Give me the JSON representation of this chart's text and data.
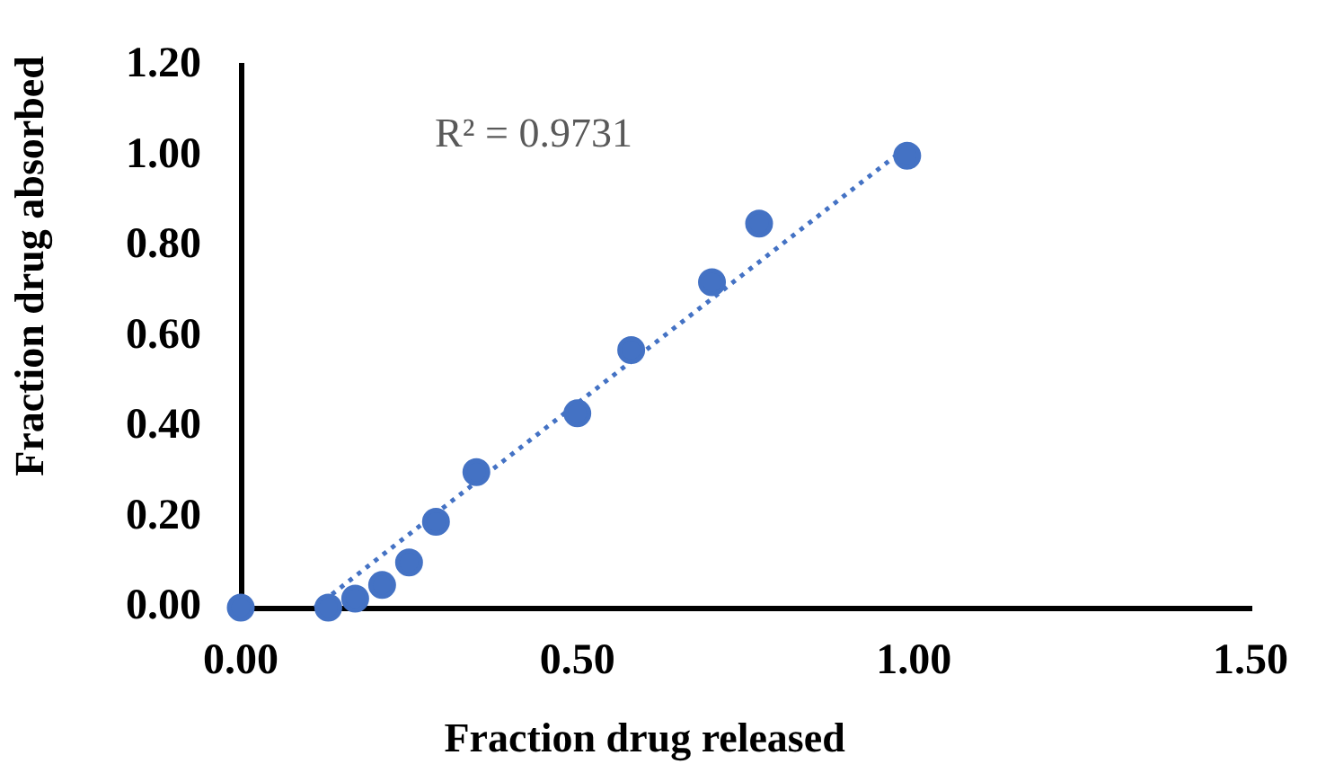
{
  "chart_data": {
    "type": "scatter",
    "xlabel": "Fraction drug released",
    "ylabel": "Fraction drug absorbed",
    "xlim": [
      0,
      1.5
    ],
    "xticks": [
      {
        "value": 0,
        "label": "0.00"
      },
      {
        "value": 0.5,
        "label": "0.50"
      },
      {
        "value": 1,
        "label": "1.00"
      },
      {
        "value": 1.5,
        "label": "1.50"
      }
    ],
    "ylim": [
      0,
      1.2
    ],
    "yticks": [
      {
        "value": 0,
        "label": "0.00"
      },
      {
        "value": 0.2,
        "label": "0.20"
      },
      {
        "value": 0.4,
        "label": "0.40"
      },
      {
        "value": 0.6,
        "label": "0.60"
      },
      {
        "value": 0.8,
        "label": "0.80"
      },
      {
        "value": 1,
        "label": "1.00"
      },
      {
        "value": 1.2,
        "label": "1.20"
      }
    ],
    "grid": false,
    "marker": "circle",
    "series": [
      {
        "color": "#4472c4",
        "x": [
          0,
          0.13,
          0.17,
          0.21,
          0.25,
          0.29,
          0.35,
          0.5,
          0.58,
          0.7,
          0.77,
          0.99
        ],
        "values": [
          0,
          0,
          0.02,
          0.05,
          0.1,
          0.19,
          0.3,
          0.43,
          0.57,
          0.72,
          0.85,
          1
        ]
      },
      {
        "type": "line",
        "color": "#4472c4",
        "line_style": "dotted",
        "marker": "none",
        "x": [
          0.11,
          0.99
        ],
        "values": [
          0,
          1.02
        ]
      }
    ],
    "annotations": [
      "R² = 0.9731"
    ]
  }
}
